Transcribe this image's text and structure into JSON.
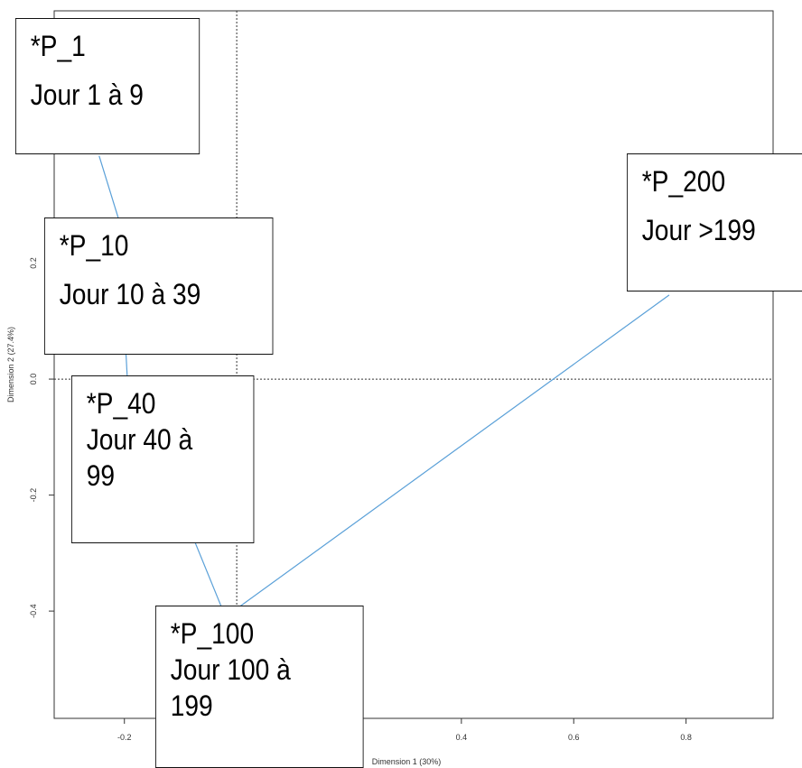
{
  "chart_data": {
    "type": "line",
    "xlabel": "Dimension 1 (30%)",
    "ylabel": "Dimension 2 (27.4%)",
    "xlim": [
      -0.325,
      0.955
    ],
    "ylim": [
      -0.585,
      0.635
    ],
    "x_ticks": [
      -0.2,
      0.4,
      0.6,
      0.8
    ],
    "x_tick_labels": [
      "-0.2",
      "0.4",
      "0.6",
      "0.8"
    ],
    "y_ticks": [
      0.2,
      0.0,
      -0.2,
      -0.4
    ],
    "y_tick_labels": [
      "0.2",
      "0.0",
      "-0.2",
      "-0.4"
    ],
    "reference_lines": {
      "x": 0.0,
      "y": 0.0,
      "style": "dotted"
    },
    "line_color": "#5aa0d8",
    "points": [
      {
        "x": -0.245,
        "y": 0.385,
        "label": [
          "*P_1",
          "Jour 1 à 9"
        ]
      },
      {
        "x": -0.21,
        "y": 0.275,
        "label": [
          "*P_10",
          "Jour 10 à 39"
        ]
      },
      {
        "x": -0.195,
        "y": 0.005,
        "label": [
          "*P_40",
          "Jour 40 à",
          "99"
        ]
      },
      {
        "x": -0.02,
        "y": -0.41,
        "label": [
          "*P_100",
          "Jour 100 à",
          "199"
        ]
      },
      {
        "x": 0.77,
        "y": 0.145,
        "label": [
          "*P_200",
          "Jour >199"
        ]
      }
    ]
  }
}
